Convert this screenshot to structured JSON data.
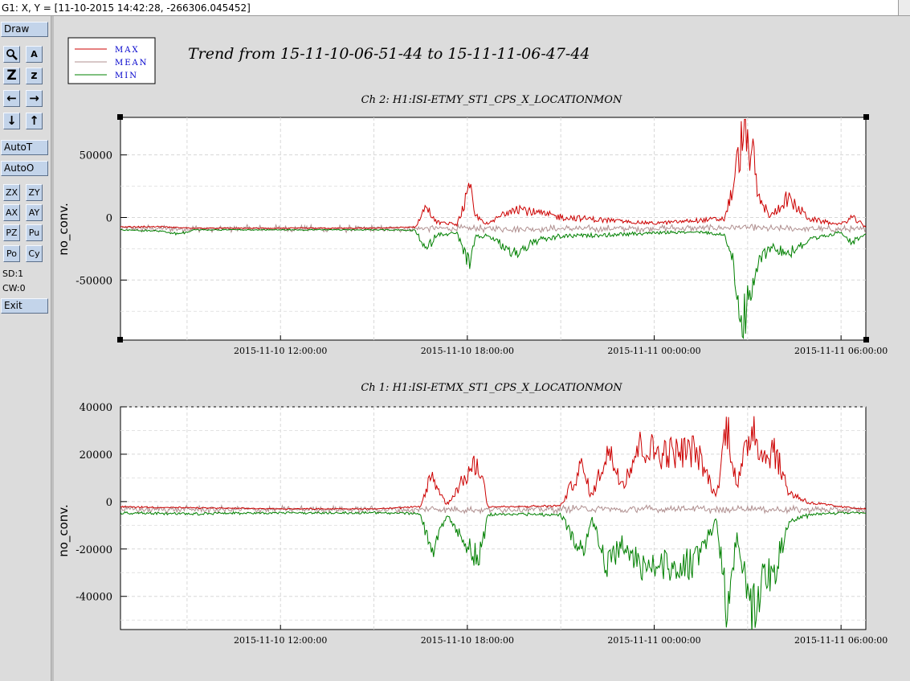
{
  "window": {
    "status": "G1: X, Y = [11-10-2015 14:42:28, -266306.045452]"
  },
  "sidebar": {
    "draw_label": "Draw",
    "row1": [
      "",
      "A"
    ],
    "row2": [
      "Z",
      "z"
    ],
    "row3": [
      "←",
      "→"
    ],
    "row4": [
      "↓",
      "↑"
    ],
    "autot_label": "AutoT",
    "autoo_label": "AutoO",
    "row5": [
      "ZX",
      "ZY"
    ],
    "row6": [
      "AX",
      "AY"
    ],
    "row7": [
      "PZ",
      "Pu"
    ],
    "row8": [
      "Po",
      "Cy"
    ],
    "sd_label": "SD:1",
    "cw_label": "CW:0",
    "exit_label": "Exit",
    "icons": {
      "zoom": "magnifier-icon",
      "autoscale": "autoscale-icon"
    }
  },
  "legend": {
    "entries": [
      {
        "label": "MAX",
        "color": "#cc0000"
      },
      {
        "label": "MEAN",
        "color": "#b09090"
      },
      {
        "label": "MIN",
        "color": "#008000"
      }
    ],
    "text_color": "#0000cc"
  },
  "trend_title": "Trend from 15-11-10-06-51-44 to 15-11-11-06-47-44",
  "chart_data": [
    {
      "type": "line",
      "title": "Ch 2: H1:ISI-ETMY_ST1_CPS_X_LOCATIONMON",
      "ylabel": "no_conv.",
      "xlabel": "",
      "xlim": [
        "2015-11-10 06:51:44",
        "2015-11-11 06:47:44"
      ],
      "ylim": [
        -98000,
        80000
      ],
      "x_ticks": [
        "2015-11-10 12:00:00",
        "2015-11-10 18:00:00",
        "2015-11-11 00:00:00",
        "2015-11-11 06:00:00"
      ],
      "y_ticks": [
        50000,
        0,
        -50000
      ],
      "grid": true,
      "x": [
        "2015-11-10 06:51:44",
        "2015-11-10 08:00:00",
        "2015-11-10 08:45:00",
        "2015-11-10 09:15:00",
        "2015-11-10 12:00:00",
        "2015-11-10 15:00:00",
        "2015-11-10 16:20:00",
        "2015-11-10 16:40:00",
        "2015-11-10 17:00:00",
        "2015-11-10 17:40:00",
        "2015-11-10 18:05:00",
        "2015-11-10 18:15:00",
        "2015-11-10 18:40:00",
        "2015-11-10 19:30:00",
        "2015-11-10 20:10:00",
        "2015-11-10 21:00:00",
        "2015-11-10 22:30:00",
        "2015-11-11 00:00:00",
        "2015-11-11 01:30:00",
        "2015-11-11 02:15:00",
        "2015-11-11 02:30:00",
        "2015-11-11 02:50:00",
        "2015-11-11 03:10:00",
        "2015-11-11 03:20:00",
        "2015-11-11 03:45:00",
        "2015-11-11 04:15:00",
        "2015-11-11 05:00:00",
        "2015-11-11 06:00:00",
        "2015-11-11 06:20:00",
        "2015-11-11 06:47:44"
      ],
      "series": [
        {
          "name": "MAX",
          "values": [
            -7500,
            -7000,
            -8000,
            -8500,
            -8500,
            -8500,
            -7500,
            12000,
            -3000,
            -5000,
            28000,
            3000,
            -5000,
            12000,
            6000,
            2000,
            -1000,
            -4000,
            -1000,
            0,
            25000,
            78000,
            60000,
            20000,
            2000,
            20000,
            0,
            -5000,
            2000,
            -7000
          ]
        },
        {
          "name": "MEAN",
          "values": [
            -8800,
            -8800,
            -9000,
            -9000,
            -9000,
            -9000,
            -9000,
            -8500,
            -8500,
            -8800,
            -9000,
            -8800,
            -9000,
            -9000,
            -9000,
            -9000,
            -9000,
            -8500,
            -8500,
            -8000,
            -8000,
            -8000,
            -8500,
            -8500,
            -9000,
            -9000,
            -9000,
            -9500,
            -9500,
            -10000
          ]
        },
        {
          "name": "MIN",
          "values": [
            -10000,
            -11000,
            -14000,
            -10000,
            -10000,
            -10000,
            -10500,
            -30000,
            -15000,
            -13000,
            -45000,
            -18000,
            -15000,
            -33000,
            -21000,
            -16000,
            -15000,
            -13000,
            -12000,
            -15000,
            -35000,
            -98000,
            -70000,
            -40000,
            -25000,
            -32000,
            -20000,
            -12000,
            -22000,
            -13000
          ]
        }
      ]
    },
    {
      "type": "line",
      "title": "Ch 1: H1:ISI-ETMX_ST1_CPS_X_LOCATIONMON",
      "ylabel": "no_conv.",
      "xlabel": "",
      "xlim": [
        "2015-11-10 06:51:44",
        "2015-11-11 06:47:44"
      ],
      "ylim": [
        -54000,
        40000
      ],
      "x_ticks": [
        "2015-11-10 12:00:00",
        "2015-11-10 18:00:00",
        "2015-11-11 00:00:00",
        "2015-11-11 06:00:00"
      ],
      "y_ticks": [
        40000,
        20000,
        0,
        -20000,
        -40000
      ],
      "grid": true,
      "x": [
        "2015-11-10 06:51:44",
        "2015-11-10 09:00:00",
        "2015-11-10 12:00:00",
        "2015-11-10 15:00:00",
        "2015-11-10 16:30:00",
        "2015-11-10 16:50:00",
        "2015-11-10 17:20:00",
        "2015-11-10 18:10:00",
        "2015-11-10 18:25:00",
        "2015-11-10 18:40:00",
        "2015-11-10 19:30:00",
        "2015-11-10 21:00:00",
        "2015-11-10 21:40:00",
        "2015-11-10 22:00:00",
        "2015-11-10 22:30:00",
        "2015-11-10 23:00:00",
        "2015-11-10 23:30:00",
        "2015-11-11 00:10:00",
        "2015-11-11 00:40:00",
        "2015-11-11 01:20:00",
        "2015-11-11 02:00:00",
        "2015-11-11 02:20:00",
        "2015-11-11 02:40:00",
        "2015-11-11 03:10:00",
        "2015-11-11 03:30:00",
        "2015-11-11 03:50:00",
        "2015-11-11 04:20:00",
        "2015-11-11 05:00:00",
        "2015-11-11 06:00:00",
        "2015-11-11 06:47:44"
      ],
      "series": [
        {
          "name": "MAX",
          "values": [
            -2000,
            -2500,
            -3000,
            -3000,
            -2000,
            14000,
            -1000,
            18000,
            17000,
            -2000,
            -2000,
            -1500,
            18000,
            3000,
            26000,
            10000,
            28000,
            25000,
            25000,
            26000,
            3000,
            40000,
            8000,
            40000,
            22000,
            27000,
            5000,
            0,
            -2000,
            -3000
          ]
        },
        {
          "name": "MEAN",
          "values": [
            -3300,
            -3300,
            -3300,
            -3300,
            -3500,
            -3000,
            -3300,
            -3500,
            -3500,
            -3300,
            -3300,
            -3300,
            -2800,
            -3300,
            -3000,
            -3800,
            -2800,
            -3500,
            -2800,
            -3000,
            -3500,
            -4000,
            -2800,
            -3000,
            -3300,
            -3300,
            -3500,
            -3300,
            -3500,
            -3500
          ]
        },
        {
          "name": "MIN",
          "values": [
            -5000,
            -5500,
            -5000,
            -5000,
            -5500,
            -25000,
            -6000,
            -25000,
            -26000,
            -6000,
            -5500,
            -6000,
            -26000,
            -8000,
            -33000,
            -20000,
            -32000,
            -30000,
            -32000,
            -30000,
            -8000,
            -54000,
            -15000,
            -54000,
            -37000,
            -35000,
            -10000,
            -6000,
            -5000,
            -5000
          ]
        }
      ]
    }
  ]
}
